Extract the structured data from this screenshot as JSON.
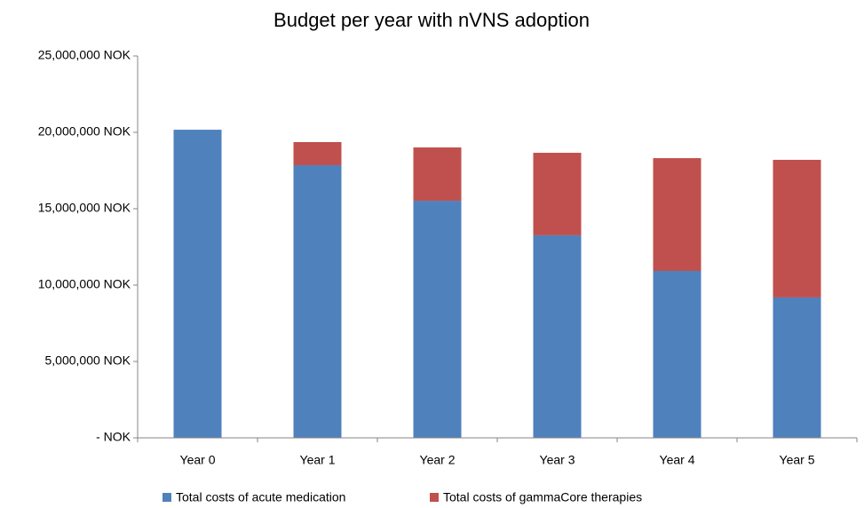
{
  "chart_data": {
    "type": "stacked_bar",
    "title": "Budget per year with nVNS adoption",
    "categories": [
      "Year 0",
      "Year 1",
      "Year 2",
      "Year 3",
      "Year 4",
      "Year 5"
    ],
    "series": [
      {
        "name": "Total costs of acute medication",
        "color": "#4f81bd",
        "values": [
          20170000,
          17850000,
          15520000,
          13260000,
          10930000,
          9190000
        ]
      },
      {
        "name": "Total costs of gammaCore therapies",
        "color": "#c0504d",
        "values": [
          0,
          1510000,
          3490000,
          5400000,
          7380000,
          9010000
        ]
      }
    ],
    "ylim": [
      0,
      25000000
    ],
    "yticks": [
      {
        "value": 0,
        "label": "- NOK"
      },
      {
        "value": 5000000,
        "label": "5,000,000 NOK"
      },
      {
        "value": 10000000,
        "label": "10,000,000 NOK"
      },
      {
        "value": 15000000,
        "label": "15,000,000 NOK"
      },
      {
        "value": 20000000,
        "label": "20,000,000 NOK"
      },
      {
        "value": 25000000,
        "label": "25,000,000 NOK"
      }
    ],
    "legend": "bottom"
  }
}
